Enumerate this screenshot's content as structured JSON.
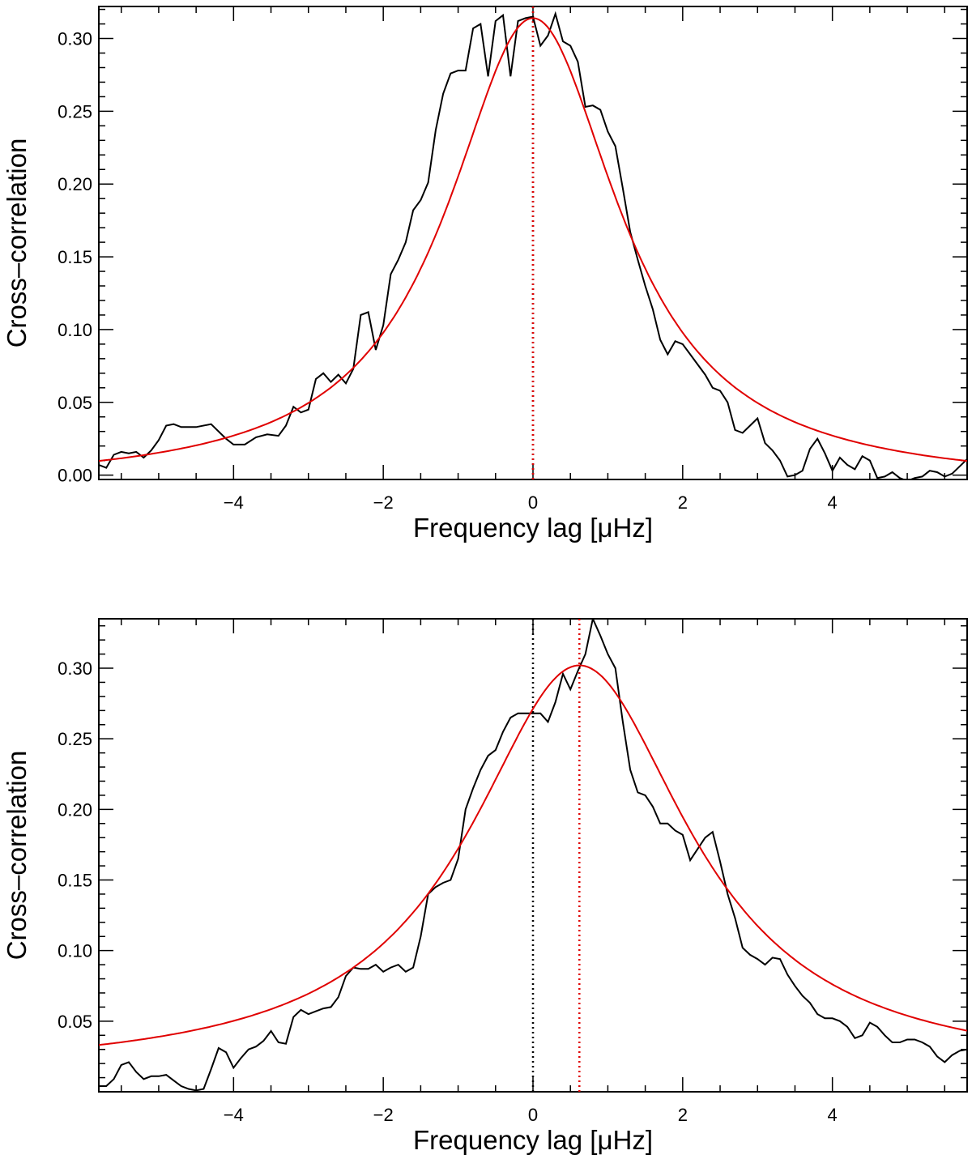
{
  "chart_data": [
    {
      "type": "line",
      "xlabel": "Frequency lag [μHz]",
      "ylabel": "Cross–correlation",
      "xlim": [
        -5.8,
        5.8
      ],
      "ylim": [
        -0.003,
        0.322
      ],
      "x_ticks": [
        -4,
        -2,
        0,
        2,
        4
      ],
      "x_tick_labels": [
        "−4",
        "−2",
        "0",
        "2",
        "4"
      ],
      "y_ticks": [
        0.0,
        0.05,
        0.1,
        0.15,
        0.2,
        0.25,
        0.3
      ],
      "y_tick_labels": [
        "0.00",
        "0.05",
        "0.10",
        "0.15",
        "0.20",
        "0.25",
        "0.30"
      ],
      "grid": false,
      "vlines": [
        {
          "x": 0.0,
          "color": "#000000",
          "style": "dotted"
        },
        {
          "x": 0.0,
          "color": "#e00000",
          "style": "dotted"
        }
      ],
      "series": [
        {
          "color": "#000000",
          "style": "line",
          "points": [
            [
              -5.8,
              0.007
            ],
            [
              -5.7,
              0.005
            ],
            [
              -5.6,
              0.014
            ],
            [
              -5.5,
              0.016
            ],
            [
              -5.4,
              0.015
            ],
            [
              -5.3,
              0.016
            ],
            [
              -5.2,
              0.012
            ],
            [
              -5.1,
              0.017
            ],
            [
              -5.0,
              0.024
            ],
            [
              -4.9,
              0.034
            ],
            [
              -4.8,
              0.035
            ],
            [
              -4.7,
              0.033
            ],
            [
              -4.5,
              0.033
            ],
            [
              -4.3,
              0.035
            ],
            [
              -4.1,
              0.025
            ],
            [
              -4.0,
              0.021
            ],
            [
              -3.85,
              0.021
            ],
            [
              -3.7,
              0.026
            ],
            [
              -3.55,
              0.028
            ],
            [
              -3.4,
              0.027
            ],
            [
              -3.3,
              0.034
            ],
            [
              -3.2,
              0.047
            ],
            [
              -3.1,
              0.043
            ],
            [
              -3.0,
              0.045
            ],
            [
              -2.9,
              0.066
            ],
            [
              -2.8,
              0.07
            ],
            [
              -2.7,
              0.064
            ],
            [
              -2.6,
              0.069
            ],
            [
              -2.5,
              0.063
            ],
            [
              -2.4,
              0.073
            ],
            [
              -2.3,
              0.11
            ],
            [
              -2.2,
              0.112
            ],
            [
              -2.1,
              0.086
            ],
            [
              -2.0,
              0.103
            ],
            [
              -1.9,
              0.138
            ],
            [
              -1.8,
              0.148
            ],
            [
              -1.7,
              0.16
            ],
            [
              -1.6,
              0.182
            ],
            [
              -1.5,
              0.189
            ],
            [
              -1.4,
              0.201
            ],
            [
              -1.3,
              0.237
            ],
            [
              -1.2,
              0.262
            ],
            [
              -1.1,
              0.276
            ],
            [
              -1.0,
              0.278
            ],
            [
              -0.9,
              0.278
            ],
            [
              -0.8,
              0.307
            ],
            [
              -0.7,
              0.31
            ],
            [
              -0.6,
              0.274
            ],
            [
              -0.5,
              0.312
            ],
            [
              -0.4,
              0.316
            ],
            [
              -0.3,
              0.274
            ],
            [
              -0.2,
              0.312
            ],
            [
              -0.1,
              0.314
            ],
            [
              0.0,
              0.315
            ],
            [
              0.1,
              0.295
            ],
            [
              0.2,
              0.302
            ],
            [
              0.3,
              0.317
            ],
            [
              0.4,
              0.298
            ],
            [
              0.5,
              0.295
            ],
            [
              0.6,
              0.284
            ],
            [
              0.7,
              0.253
            ],
            [
              0.8,
              0.254
            ],
            [
              0.9,
              0.251
            ],
            [
              1.0,
              0.236
            ],
            [
              1.1,
              0.226
            ],
            [
              1.2,
              0.197
            ],
            [
              1.3,
              0.167
            ],
            [
              1.4,
              0.148
            ],
            [
              1.5,
              0.13
            ],
            [
              1.6,
              0.114
            ],
            [
              1.7,
              0.093
            ],
            [
              1.8,
              0.083
            ],
            [
              1.9,
              0.092
            ],
            [
              2.0,
              0.09
            ],
            [
              2.1,
              0.083
            ],
            [
              2.2,
              0.076
            ],
            [
              2.3,
              0.069
            ],
            [
              2.4,
              0.06
            ],
            [
              2.5,
              0.058
            ],
            [
              2.6,
              0.05
            ],
            [
              2.7,
              0.031
            ],
            [
              2.8,
              0.029
            ],
            [
              2.9,
              0.034
            ],
            [
              3.0,
              0.039
            ],
            [
              3.1,
              0.022
            ],
            [
              3.2,
              0.017
            ],
            [
              3.3,
              0.01
            ],
            [
              3.4,
              -0.001
            ],
            [
              3.5,
              0.0
            ],
            [
              3.6,
              0.003
            ],
            [
              3.7,
              0.018
            ],
            [
              3.8,
              0.025
            ],
            [
              3.9,
              0.015
            ],
            [
              4.0,
              0.003
            ],
            [
              4.1,
              0.012
            ],
            [
              4.2,
              0.007
            ],
            [
              4.3,
              0.004
            ],
            [
              4.4,
              0.013
            ],
            [
              4.5,
              0.01
            ],
            [
              4.6,
              -0.002
            ],
            [
              4.7,
              -0.001
            ],
            [
              4.8,
              0.002
            ],
            [
              4.9,
              -0.002
            ],
            [
              5.0,
              -0.004
            ],
            [
              5.1,
              -0.002
            ],
            [
              5.2,
              -0.001
            ],
            [
              5.3,
              0.003
            ],
            [
              5.4,
              0.002
            ],
            [
              5.5,
              -0.001
            ],
            [
              5.6,
              0.001
            ],
            [
              5.7,
              0.006
            ],
            [
              5.8,
              0.011
            ]
          ]
        },
        {
          "color": "#e00000",
          "style": "fit",
          "fit": {
            "model": "lorentzian",
            "amplitude": 0.322,
            "center": 0.0,
            "hwhm": 1.4,
            "offset": -0.008
          }
        }
      ]
    },
    {
      "type": "line",
      "xlabel": "Frequency lag [μHz]",
      "ylabel": "Cross–correlation",
      "xlim": [
        -5.8,
        5.8
      ],
      "ylim": [
        0.0,
        0.335
      ],
      "x_ticks": [
        -4,
        -2,
        0,
        2,
        4
      ],
      "x_tick_labels": [
        "−4",
        "−2",
        "0",
        "2",
        "4"
      ],
      "y_ticks": [
        0.05,
        0.1,
        0.15,
        0.2,
        0.25,
        0.3
      ],
      "y_tick_labels": [
        "0.05",
        "0.10",
        "0.15",
        "0.20",
        "0.25",
        "0.30"
      ],
      "grid": false,
      "vlines": [
        {
          "x": 0.0,
          "color": "#000000",
          "style": "dotted"
        },
        {
          "x": 0.62,
          "color": "#e00000",
          "style": "dotted"
        }
      ],
      "series": [
        {
          "color": "#000000",
          "style": "line",
          "points": [
            [
              -5.8,
              0.004
            ],
            [
              -5.7,
              0.004
            ],
            [
              -5.6,
              0.009
            ],
            [
              -5.5,
              0.019
            ],
            [
              -5.4,
              0.021
            ],
            [
              -5.3,
              0.014
            ],
            [
              -5.2,
              0.009
            ],
            [
              -5.1,
              0.011
            ],
            [
              -5.0,
              0.011
            ],
            [
              -4.9,
              0.012
            ],
            [
              -4.8,
              0.008
            ],
            [
              -4.7,
              0.004
            ],
            [
              -4.6,
              0.002
            ],
            [
              -4.5,
              0.001
            ],
            [
              -4.4,
              0.002
            ],
            [
              -4.3,
              0.016
            ],
            [
              -4.2,
              0.031
            ],
            [
              -4.1,
              0.028
            ],
            [
              -4.0,
              0.017
            ],
            [
              -3.9,
              0.024
            ],
            [
              -3.8,
              0.03
            ],
            [
              -3.7,
              0.032
            ],
            [
              -3.6,
              0.036
            ],
            [
              -3.5,
              0.043
            ],
            [
              -3.4,
              0.035
            ],
            [
              -3.3,
              0.034
            ],
            [
              -3.2,
              0.053
            ],
            [
              -3.1,
              0.058
            ],
            [
              -3.0,
              0.055
            ],
            [
              -2.9,
              0.057
            ],
            [
              -2.8,
              0.059
            ],
            [
              -2.7,
              0.06
            ],
            [
              -2.6,
              0.067
            ],
            [
              -2.5,
              0.082
            ],
            [
              -2.4,
              0.088
            ],
            [
              -2.3,
              0.087
            ],
            [
              -2.2,
              0.087
            ],
            [
              -2.1,
              0.09
            ],
            [
              -2.0,
              0.085
            ],
            [
              -1.9,
              0.088
            ],
            [
              -1.8,
              0.09
            ],
            [
              -1.7,
              0.085
            ],
            [
              -1.6,
              0.088
            ],
            [
              -1.5,
              0.11
            ],
            [
              -1.4,
              0.14
            ],
            [
              -1.3,
              0.145
            ],
            [
              -1.2,
              0.148
            ],
            [
              -1.1,
              0.15
            ],
            [
              -1.0,
              0.165
            ],
            [
              -0.9,
              0.2
            ],
            [
              -0.8,
              0.215
            ],
            [
              -0.7,
              0.228
            ],
            [
              -0.6,
              0.238
            ],
            [
              -0.5,
              0.242
            ],
            [
              -0.4,
              0.255
            ],
            [
              -0.3,
              0.265
            ],
            [
              -0.2,
              0.268
            ],
            [
              -0.1,
              0.268
            ],
            [
              0.0,
              0.268
            ],
            [
              0.1,
              0.268
            ],
            [
              0.2,
              0.262
            ],
            [
              0.3,
              0.276
            ],
            [
              0.4,
              0.296
            ],
            [
              0.5,
              0.285
            ],
            [
              0.6,
              0.298
            ],
            [
              0.7,
              0.31
            ],
            [
              0.8,
              0.335
            ],
            [
              0.9,
              0.323
            ],
            [
              1.0,
              0.31
            ],
            [
              1.1,
              0.3
            ],
            [
              1.2,
              0.262
            ],
            [
              1.3,
              0.228
            ],
            [
              1.4,
              0.212
            ],
            [
              1.5,
              0.21
            ],
            [
              1.6,
              0.202
            ],
            [
              1.7,
              0.19
            ],
            [
              1.8,
              0.19
            ],
            [
              1.9,
              0.185
            ],
            [
              2.0,
              0.182
            ],
            [
              2.1,
              0.164
            ],
            [
              2.2,
              0.172
            ],
            [
              2.3,
              0.18
            ],
            [
              2.4,
              0.184
            ],
            [
              2.5,
              0.163
            ],
            [
              2.6,
              0.14
            ],
            [
              2.7,
              0.123
            ],
            [
              2.8,
              0.102
            ],
            [
              2.9,
              0.097
            ],
            [
              3.0,
              0.094
            ],
            [
              3.1,
              0.09
            ],
            [
              3.2,
              0.095
            ],
            [
              3.3,
              0.094
            ],
            [
              3.4,
              0.083
            ],
            [
              3.5,
              0.075
            ],
            [
              3.6,
              0.068
            ],
            [
              3.7,
              0.063
            ],
            [
              3.8,
              0.055
            ],
            [
              3.9,
              0.052
            ],
            [
              4.0,
              0.052
            ],
            [
              4.1,
              0.05
            ],
            [
              4.2,
              0.046
            ],
            [
              4.3,
              0.038
            ],
            [
              4.4,
              0.04
            ],
            [
              4.5,
              0.049
            ],
            [
              4.6,
              0.046
            ],
            [
              4.7,
              0.04
            ],
            [
              4.8,
              0.035
            ],
            [
              4.9,
              0.035
            ],
            [
              5.0,
              0.037
            ],
            [
              5.1,
              0.037
            ],
            [
              5.2,
              0.035
            ],
            [
              5.3,
              0.032
            ],
            [
              5.4,
              0.025
            ],
            [
              5.5,
              0.021
            ],
            [
              5.6,
              0.026
            ],
            [
              5.7,
              0.029
            ],
            [
              5.8,
              0.03
            ]
          ]
        },
        {
          "color": "#e00000",
          "style": "fit",
          "fit": {
            "model": "lorentzian",
            "amplitude": 0.29,
            "center": 0.62,
            "hwhm": 1.8,
            "offset": 0.012
          }
        }
      ]
    }
  ]
}
